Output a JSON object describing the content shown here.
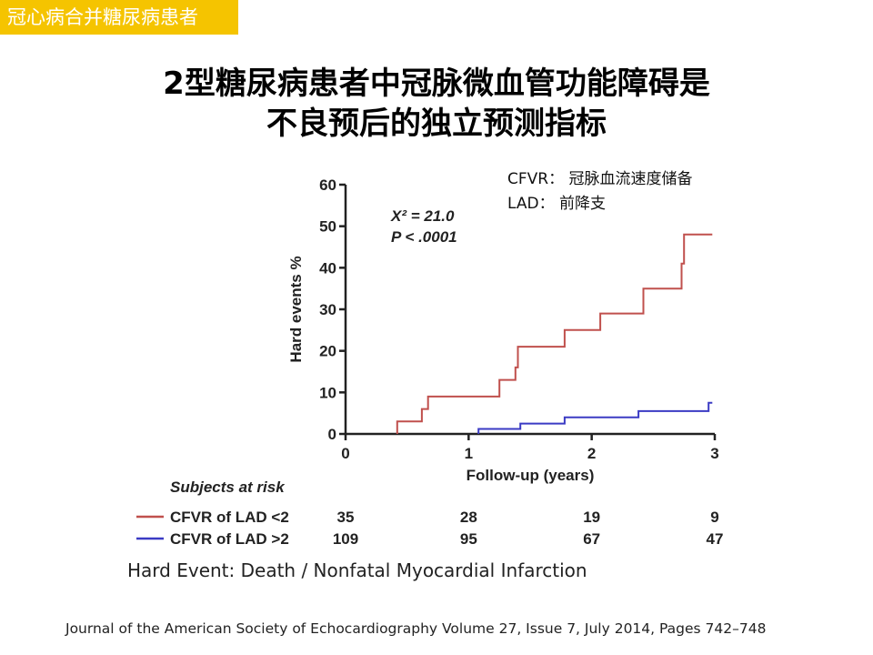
{
  "tag": "冠心病合并糖尿病患者",
  "title": {
    "line1": "2型糖尿病患者中冠脉微血管功能障碍是",
    "line2": "不良预后的独立预测指标"
  },
  "abbreviations": [
    "CFVR：  冠脉血流速度储备",
    "LAD：  前降支"
  ],
  "note": "Hard Event: Death / Nonfatal Myocardial Infarction",
  "journal": "Journal of the American Society of Echocardiography Volume 27, Issue 7, July 2014, Pages 742–748",
  "colors": {
    "tag_bg": "#f5c400",
    "series_red": "#c0504d",
    "series_blue": "#3b3bc4"
  },
  "chart_data": {
    "type": "line",
    "subtype": "kaplan-meier step curve",
    "xlabel": "Follow-up (years)",
    "ylabel": "Hard events %",
    "xlim": [
      0,
      3
    ],
    "ylim": [
      0,
      60
    ],
    "x_ticks": [
      "0",
      "1",
      "2",
      "3"
    ],
    "y_ticks": [
      "0",
      "10",
      "20",
      "30",
      "40",
      "50",
      "60"
    ],
    "annotation": [
      "X² = 21.0",
      "P < .0001"
    ],
    "series": [
      {
        "name": "CFVR of LAD <2",
        "color": "#c0504d",
        "points": [
          [
            0.42,
            0
          ],
          [
            0.42,
            3
          ],
          [
            0.62,
            3
          ],
          [
            0.62,
            6
          ],
          [
            0.67,
            6
          ],
          [
            0.67,
            9
          ],
          [
            1.25,
            9
          ],
          [
            1.25,
            13
          ],
          [
            1.38,
            13
          ],
          [
            1.38,
            16
          ],
          [
            1.4,
            16
          ],
          [
            1.4,
            21
          ],
          [
            1.78,
            21
          ],
          [
            1.78,
            25
          ],
          [
            2.07,
            25
          ],
          [
            2.07,
            29
          ],
          [
            2.42,
            29
          ],
          [
            2.42,
            35
          ],
          [
            2.73,
            35
          ],
          [
            2.73,
            41
          ],
          [
            2.75,
            41
          ],
          [
            2.75,
            48
          ],
          [
            2.98,
            48
          ]
        ]
      },
      {
        "name": "CFVR of LAD >2",
        "color": "#3b3bc4",
        "points": [
          [
            1.08,
            0
          ],
          [
            1.08,
            1.2
          ],
          [
            1.42,
            1.2
          ],
          [
            1.42,
            2.5
          ],
          [
            1.78,
            2.5
          ],
          [
            1.78,
            4
          ],
          [
            2.38,
            4
          ],
          [
            2.38,
            5.5
          ],
          [
            2.95,
            5.5
          ],
          [
            2.95,
            7.5
          ],
          [
            2.98,
            7.5
          ]
        ]
      }
    ],
    "risk_table": {
      "title": "Subjects at risk",
      "rows": [
        {
          "label": "CFVR of LAD <2",
          "values": [
            "35",
            "28",
            "19",
            "9"
          ]
        },
        {
          "label": "CFVR of LAD >2",
          "values": [
            "109",
            "95",
            "67",
            "47"
          ]
        }
      ]
    }
  }
}
